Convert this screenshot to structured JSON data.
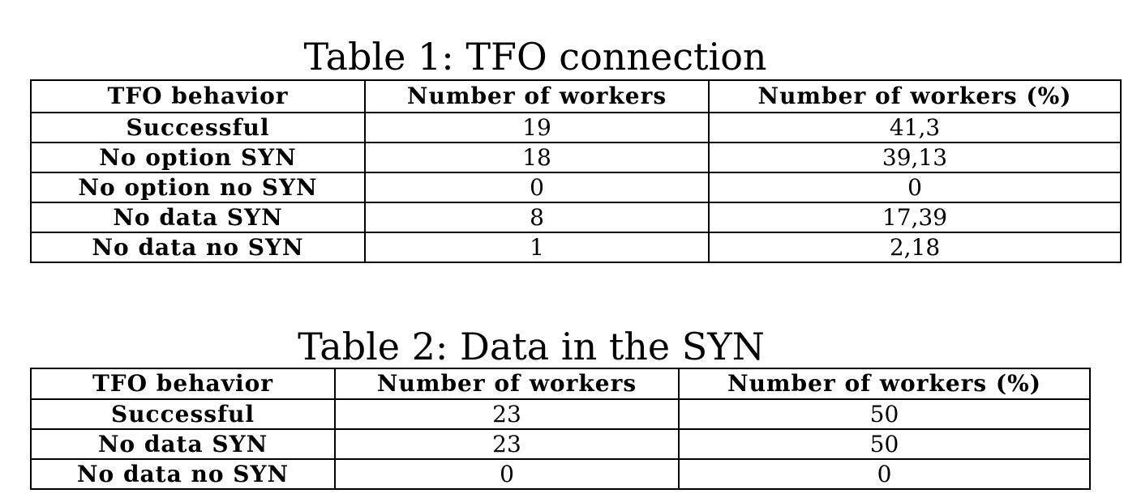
{
  "table1": {
    "caption": "Table 1: TFO connection",
    "headers": [
      "TFO behavior",
      "Number of workers",
      "Number of workers (%)"
    ],
    "rows": [
      {
        "behavior": "Successful",
        "workers": "19",
        "percent": "41,3"
      },
      {
        "behavior": "No option SYN",
        "workers": "18",
        "percent": "39,13"
      },
      {
        "behavior": "No option no SYN",
        "workers": "0",
        "percent": "0"
      },
      {
        "behavior": "No data SYN",
        "workers": "8",
        "percent": "17,39"
      },
      {
        "behavior": "No data no SYN",
        "workers": "1",
        "percent": "2,18"
      }
    ]
  },
  "table2": {
    "caption": "Table 2: Data in the SYN",
    "headers": [
      "TFO behavior",
      "Number of workers",
      "Number of workers (%)"
    ],
    "rows": [
      {
        "behavior": "Successful",
        "workers": "23",
        "percent": "50"
      },
      {
        "behavior": "No data SYN",
        "workers": "23",
        "percent": "50"
      },
      {
        "behavior": "No data no SYN",
        "workers": "0",
        "percent": "0"
      }
    ]
  }
}
